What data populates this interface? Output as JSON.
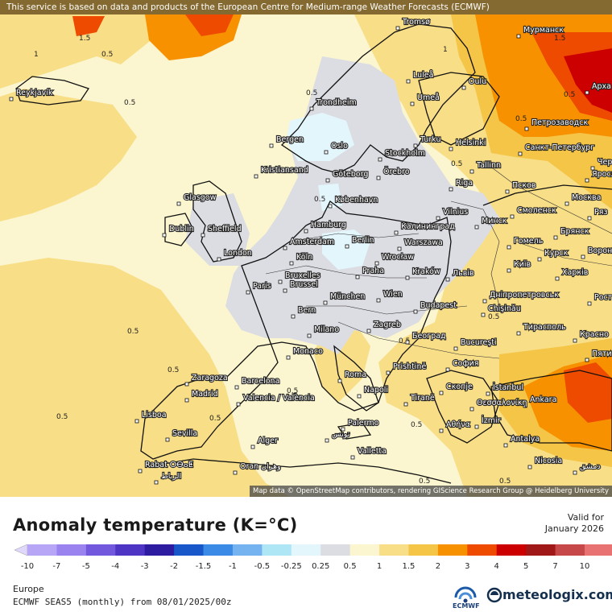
{
  "disclaimer": "This service is based on data and products of the European Centre for Medium-range Weather Forecasts (ECMWF)",
  "attribution": "Map data © OpenStreetMap contributors, rendering GIScience Research Group @ Heidelberg University",
  "legend": {
    "title": "Anomaly temperature (K=°C)",
    "valid_label": "Valid for",
    "valid_date": "January 2026",
    "ticks": [
      "-10",
      "-7",
      "-5",
      "-4",
      "-3",
      "-2",
      "-1.5",
      "-1",
      "-0.5",
      "-0.25",
      "0.25",
      "0.5",
      "1",
      "1.5",
      "2",
      "3",
      "4",
      "5",
      "7",
      "10"
    ],
    "colors": [
      "#b6a6f5",
      "#9b83ef",
      "#7258dc",
      "#4f35c4",
      "#2d1ca0",
      "#1857c9",
      "#3b8ae6",
      "#74b2f0",
      "#aee6f5",
      "#e2f6fb",
      "#dcdde3",
      "#fbf6cf",
      "#f8de86",
      "#f4c546",
      "#f79100",
      "#ee4a00",
      "#cc0000",
      "#a01818",
      "#c64848",
      "#e87272",
      "#f4a8a8"
    ]
  },
  "footer": {
    "region": "Europe",
    "model": "ECMWF SEAS5 (monthly) from 08/01/2025/00z",
    "ecmwf_logo_text": "ECMWF",
    "brand": "meteologix.com"
  },
  "contour_labels": [
    "1.5",
    "1",
    "0.5",
    "0.5",
    "0.5",
    "1",
    "1.5",
    "0.5",
    "0.5",
    "0.5",
    "0.5",
    "0.5",
    "0.5",
    "0.5",
    "0.5",
    "0.5",
    "0.5",
    "0.5",
    "0.5",
    "0.5",
    "0.5"
  ],
  "cities": [
    "Tromsø",
    "Мурманск",
    "Reykjavík",
    "Luleå",
    "Oulu",
    "Арха",
    "Umeå",
    "Trondheim",
    "Петрозаводск",
    "Bergen",
    "Oslo",
    "Turku",
    "Helsinki",
    "Санкт-Петербург",
    "Чер",
    "Stockholm",
    "Örebro",
    "Tallinn",
    "Псков",
    "Яросл",
    "Kristiansand",
    "Göteborg",
    "Riga",
    "Glasgow",
    "København",
    "Vilnius",
    "Москва",
    "Смоленск",
    "Ряз",
    "Hamburg",
    "Калининград",
    "Минск",
    "Брянск",
    "Dublin",
    "Sheffield",
    "Amsterdam",
    "Berlin",
    "Warszawa",
    "Гомель",
    "Курск",
    "Ворон",
    "London",
    "Köln",
    "Wrocław",
    "Київ",
    "Харків",
    "Bruxelles",
    "Brussel",
    "Praha",
    "Kraków",
    "Львів",
    "Paris",
    "Дніпропетровськ",
    "Рост",
    "München",
    "Wien",
    "Chişinău",
    "Bern",
    "Budapest",
    "Тирасполь",
    "Красно",
    "Milano",
    "Zagreb",
    "Београд",
    "Пяти",
    "Monaco",
    "Bucureşti",
    "Roma",
    "Prishtinë",
    "София",
    "Zaragoza",
    "Barcelona",
    "Madrid",
    "Napoli",
    "Tiranë",
    "Скопје",
    "İstanbul",
    "Ankara",
    "Valencia / València",
    "Θεσσαλονίκη",
    "Lisboa",
    "İzmir",
    "Sevilla",
    "Palermo",
    "Αθήνα",
    "Antalya",
    "تونس",
    "Alger",
    "Valletta",
    "Rabat ⵔⴱⴰⵟ",
    "الرباط",
    "Oran وهران",
    "Nicosia",
    "دمشق"
  ]
}
